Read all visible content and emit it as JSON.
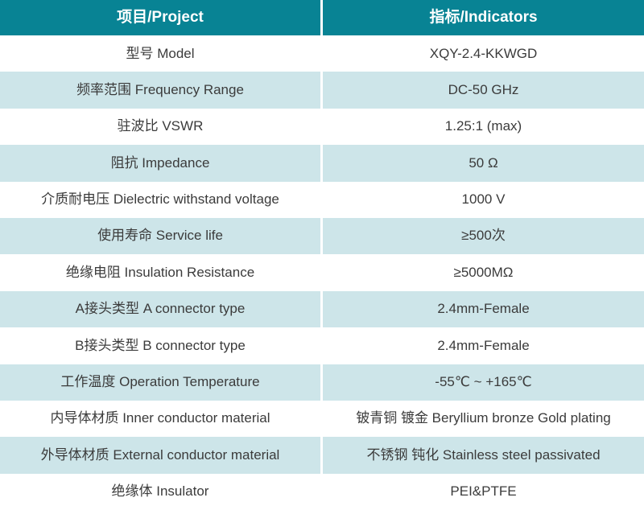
{
  "table": {
    "columns": {
      "project": "项目/Project",
      "indicator": "指标/Indicators"
    },
    "rows": [
      {
        "project": "型号 Model",
        "indicator": "XQY-2.4-KKWGD"
      },
      {
        "project": "频率范围 Frequency Range",
        "indicator": "DC-50 GHz"
      },
      {
        "project": "驻波比 VSWR",
        "indicator": "1.25:1 (max)"
      },
      {
        "project": "阻抗 Impedance",
        "indicator": "50 Ω"
      },
      {
        "project": "介质耐电压 Dielectric withstand voltage",
        "indicator": "1000 V"
      },
      {
        "project": "使用寿命 Service life",
        "indicator": "≥500次"
      },
      {
        "project": "绝缘电阻 Insulation Resistance",
        "indicator": "≥5000MΩ"
      },
      {
        "project": "A接头类型 A connector type",
        "indicator": "2.4mm-Female"
      },
      {
        "project": "B接头类型 B connector type",
        "indicator": "2.4mm-Female"
      },
      {
        "project": "工作温度 Operation Temperature",
        "indicator": "-55℃ ~ +165℃"
      },
      {
        "project": "内导体材质 Inner conductor material",
        "indicator": "铍青铜 镀金 Beryllium bronze Gold plating"
      },
      {
        "project": "外导体材质 External conductor material",
        "indicator": "不锈钢 钝化 Stainless steel passivated"
      },
      {
        "project": "绝缘体 Insulator",
        "indicator": "PEI&PTFE"
      }
    ],
    "colors": {
      "header_bg": "#088394",
      "header_text": "#ffffff",
      "row_bg": "#ffffff",
      "row_alt_bg": "#cde5e9",
      "cell_text": "#3b3b3b",
      "divider": "#ffffff"
    }
  }
}
